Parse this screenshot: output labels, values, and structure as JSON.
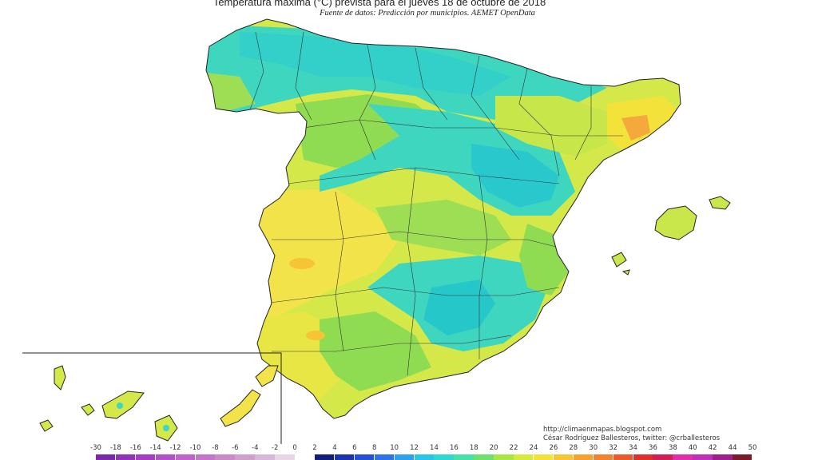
{
  "header": {
    "title": "Temperatura máxima (°C) prevista para el jueves 18 de octubre de 2018",
    "subtitle": "Fuente de datos: Predicción por municipios. AEMET OpenData"
  },
  "credits": {
    "line1": "http://climaenmapas.blogspot.com",
    "line2": "César Rodríguez Ballesteros, twitter: @crballesteros"
  },
  "map": {
    "regions": [
      "Península Ibérica",
      "Islas Baleares",
      "Islas Canarias"
    ],
    "colors": {
      "land_base": "#d4e84a",
      "warm": "#f2e34a",
      "cool_green": "#8fdc52",
      "cool_cyan": "#3fd6c0",
      "coldest": "#26c7c9",
      "hot": "#f3a93c",
      "border": "#222222"
    }
  },
  "legend": {
    "ticks": [
      "-30",
      "-18",
      "-16",
      "-14",
      "-12",
      "-10",
      "-8",
      "-6",
      "-4",
      "-2",
      "0",
      "2",
      "4",
      "6",
      "8",
      "10",
      "12",
      "14",
      "16",
      "18",
      "20",
      "22",
      "24",
      "26",
      "28",
      "30",
      "32",
      "34",
      "36",
      "38",
      "40",
      "42",
      "44",
      "50"
    ],
    "colors": [
      "#7a2aa8",
      "#9132b8",
      "#a53ec5",
      "#b24fc9",
      "#bf62cc",
      "#c575c9",
      "#ca8ac8",
      "#cfa0cc",
      "#d8b8d8",
      "#e6d6e6",
      "#ffffff",
      "#131e7a",
      "#1d34b0",
      "#2650d6",
      "#2f73e8",
      "#2fa0ee",
      "#29c4e8",
      "#2fd8d0",
      "#49e0a8",
      "#6fe06e",
      "#a8e646",
      "#d6ea3e",
      "#f2e23a",
      "#f6c435",
      "#f5a232",
      "#f1822f",
      "#eb5a2d",
      "#e0302b",
      "#d01f55",
      "#e12da8",
      "#c02fb9",
      "#9c1f8c",
      "#7a1a2a"
    ]
  }
}
